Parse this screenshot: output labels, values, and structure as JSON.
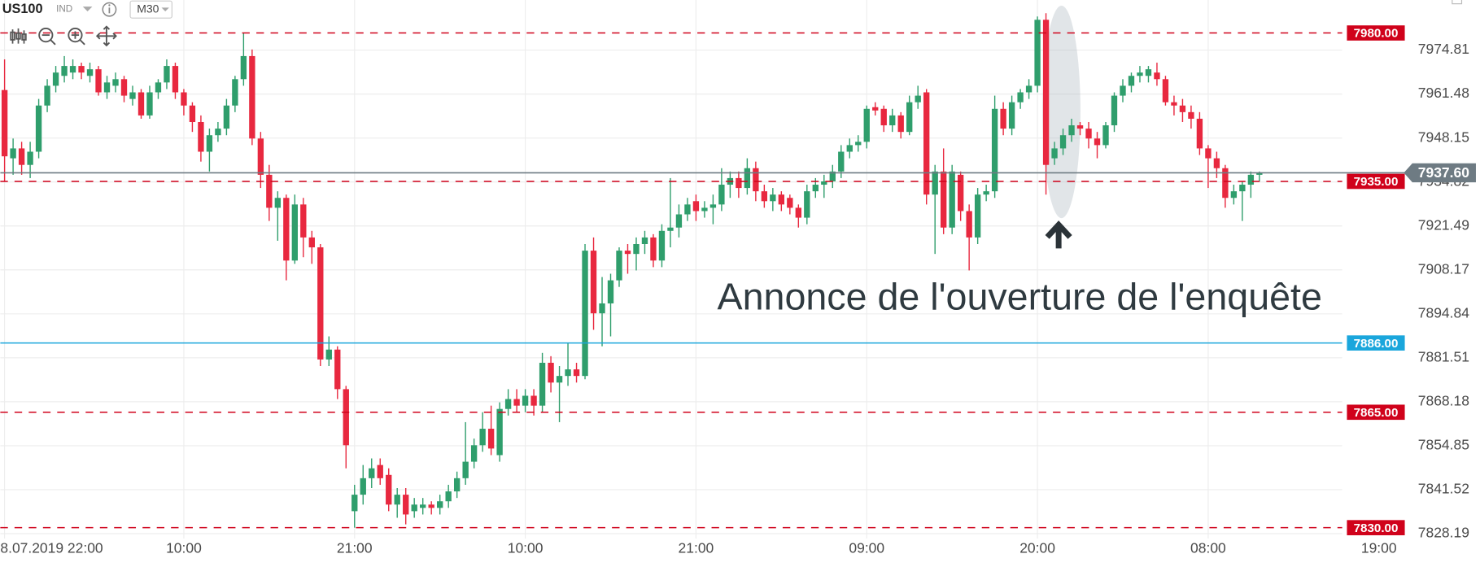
{
  "chart_data": {
    "type": "candlestick",
    "title": "US100",
    "subtitle": "IND",
    "timeframe": "M30",
    "annotation": "Annonce de l'ouverture de l'enquête",
    "up_color": "#2f9e6c",
    "down_color": "#e8283f",
    "grid": true,
    "open": [
      7962.7,
      7942,
      7945,
      7940,
      7944,
      7958,
      7964,
      7967,
      7968,
      7970,
      7967,
      7969,
      7962,
      7964,
      7966,
      7960,
      7962,
      7955,
      7962,
      7965,
      7970,
      7962,
      7958,
      7953,
      7944,
      7949,
      7951,
      7958,
      7966,
      7973,
      7948,
      7937,
      7927,
      7930,
      7911,
      7928,
      7918,
      7915,
      7881,
      7884,
      7872,
      7835,
      7840,
      7845,
      7849,
      7846,
      7837,
      7840,
      7835,
      7836,
      7837,
      7836,
      7838,
      7841,
      7845,
      7850,
      7855,
      7860,
      7852,
      7866,
      7869,
      7867,
      7870,
      7867,
      7880,
      7874,
      7876,
      7878,
      7876,
      7914,
      7895,
      7898,
      7905,
      7914,
      7913,
      7916,
      7918,
      7911,
      7920,
      7921,
      7925,
      7929,
      7926,
      7927,
      7928,
      7934,
      7936,
      7933,
      7939,
      7932,
      7929,
      7931,
      7930,
      7927,
      7924,
      7932,
      7934,
      7935,
      7938,
      7944,
      7946,
      7947,
      7957.5,
      7957,
      7952,
      7955,
      7950,
      7959,
      7962,
      7931,
      7938,
      7921,
      7937,
      7926,
      7918,
      7931,
      7932,
      7957,
      7951,
      7959,
      7962,
      7964,
      7984,
      7942,
      7945,
      7949,
      7952,
      7951,
      7948,
      7946,
      7952,
      7961,
      7964,
      7967,
      7967,
      7968,
      7966,
      7959,
      7958,
      7956,
      7954,
      7945,
      7942,
      7939,
      7930,
      7932,
      7934,
      7937
    ],
    "high": [
      7972,
      7948,
      7947,
      7947,
      7960,
      7966,
      7970,
      7973,
      7972,
      7971,
      7971,
      7970,
      7967,
      7968,
      7967,
      7964,
      7963,
      7964,
      7966,
      7972,
      7971,
      7963,
      7959,
      7955,
      7951,
      7953,
      7960,
      7967,
      7980,
      7975,
      7950,
      7940,
      7932,
      7931,
      7931,
      7930,
      7920,
      7916,
      7888,
      7885,
      7873,
      7843,
      7849,
      7851,
      7851,
      7848,
      7842,
      7842,
      7839,
      7839,
      7838,
      7840,
      7843,
      7847,
      7862,
      7857,
      7865,
      7867,
      7868,
      7872,
      7872,
      7872,
      7872,
      7883,
      7882,
      7879,
      7886,
      7880,
      7916,
      7918,
      7906,
      7907,
      7915,
      7916,
      7918,
      7920,
      7919,
      7922,
      7936,
      7928,
      7930,
      7931,
      7929,
      7931,
      7939,
      7938,
      7938,
      7942,
      7941,
      7934,
      7933,
      7932,
      7931,
      7928,
      7934,
      7936,
      7937,
      7940,
      7946,
      7948,
      7949,
      7958,
      7959,
      7958,
      7957,
      7956,
      7961,
      7964,
      7963,
      7940,
      7945,
      7940,
      7938,
      7928,
      7933,
      7934,
      7961,
      7959,
      7961,
      7963,
      7966,
      7985,
      7986,
      7947,
      7951,
      7954,
      7953,
      7953,
      7950,
      7953,
      7962,
      7966,
      7968,
      7970,
      7970,
      7971,
      7967,
      7961,
      7960,
      7958,
      7956,
      7946,
      7944,
      7940,
      7934,
      7935,
      7938,
      7938
    ],
    "low": [
      7935,
      7937,
      7937,
      7936,
      7942,
      7956,
      7962,
      7965,
      7966,
      7966,
      7965,
      7961,
      7960,
      7962,
      7959,
      7958,
      7954,
      7954,
      7960,
      7963,
      7960,
      7955,
      7950,
      7941,
      7938,
      7947,
      7949,
      7956,
      7964,
      7946,
      7933,
      7923,
      7917,
      7905,
      7910,
      7912,
      7910,
      7879,
      7879,
      7869,
      7848,
      7830,
      7837,
      7842,
      7843,
      7835,
      7833,
      7831,
      7833,
      7834,
      7834,
      7834,
      7836,
      7839,
      7843,
      7848,
      7853,
      7852,
      7850,
      7864,
      7865,
      7865,
      7864,
      7865,
      7871,
      7862,
      7873,
      7874,
      7875,
      7890,
      7885,
      7888,
      7903,
      7907,
      7908,
      7913,
      7909,
      7909,
      7915,
      7918,
      7923,
      7923,
      7924,
      7922,
      7926,
      7930,
      7930,
      7931,
      7929,
      7927,
      7926,
      7926,
      7925,
      7921,
      7922,
      7930,
      7930,
      7933,
      7936,
      7942,
      7944,
      7945,
      7955,
      7950,
      7950,
      7948,
      7949,
      7957,
      7928,
      7913,
      7919,
      7919,
      7923,
      7908,
      7916,
      7929,
      7930,
      7949,
      7949,
      7957,
      7960,
      7962,
      7931,
      7940,
      7943,
      7947,
      7949,
      7945,
      7942,
      7945,
      7950,
      7959,
      7962,
      7965,
      7965,
      7964,
      7958,
      7955,
      7953,
      7951,
      7943,
      7933,
      7936,
      7927,
      7928,
      7923,
      7930,
      7935
    ],
    "close": [
      7942.6,
      7945,
      7940,
      7944,
      7958,
      7964,
      7968,
      7970,
      7970,
      7968,
      7969,
      7962,
      7965,
      7966,
      7961,
      7962,
      7955,
      7962,
      7965,
      7970,
      7962,
      7958,
      7953,
      7944,
      7949,
      7951,
      7958,
      7966,
      7973,
      7948,
      7937,
      7927,
      7930,
      7911,
      7928,
      7918,
      7915,
      7881,
      7884,
      7872,
      7855,
      7840,
      7845,
      7848,
      7845,
      7837,
      7840,
      7834,
      7837,
      7837,
      7836,
      7838,
      7841,
      7845,
      7850,
      7855,
      7860,
      7854,
      7866,
      7869,
      7867,
      7870,
      7867,
      7880,
      7874,
      7876,
      7878,
      7876,
      7914,
      7895,
      7898,
      7905,
      7914,
      7913,
      7916,
      7918,
      7911,
      7920,
      7921,
      7925,
      7928,
      7926,
      7927,
      7928,
      7934,
      7936,
      7933,
      7939,
      7932,
      7929,
      7931,
      7928,
      7927,
      7924,
      7932,
      7934,
      7935,
      7938,
      7944,
      7946,
      7947,
      7957,
      7956.5,
      7952,
      7955,
      7950,
      7959,
      7961,
      7931,
      7938,
      7921,
      7938,
      7926,
      7918,
      7931,
      7932,
      7957,
      7951,
      7959,
      7962,
      7964,
      7984,
      7940,
      7945,
      7949,
      7952,
      7951,
      7948,
      7946,
      7952,
      7961,
      7964,
      7967,
      7968,
      7969,
      7966,
      7959,
      7958,
      7956,
      7954,
      7945,
      7942,
      7939,
      7930,
      7932,
      7934,
      7937,
      7937.6
    ],
    "xlim": [
      -0.5,
      156.7
    ],
    "xticks": [
      {
        "value": 0,
        "label": "8.07.2019 22:00"
      },
      {
        "value": 21,
        "label": "10:00"
      },
      {
        "value": 41,
        "label": "21:00"
      },
      {
        "value": 61,
        "label": "10:00"
      },
      {
        "value": 81,
        "label": "21:00"
      },
      {
        "value": 101,
        "label": "09:00"
      },
      {
        "value": 121,
        "label": "20:00"
      },
      {
        "value": 141,
        "label": "08:00"
      },
      {
        "value": 161,
        "label": "19:00"
      }
    ],
    "ylim": [
      7826.7,
      7990
    ],
    "yticks": [
      7974.81,
      7961.48,
      7948.15,
      7934.82,
      7921.49,
      7908.17,
      7894.84,
      7881.51,
      7868.18,
      7854.85,
      7841.52,
      7828.19
    ],
    "levels": [
      {
        "value": 7980,
        "label": "7980.00",
        "color": "#d0021b",
        "style": "dashed"
      },
      {
        "value": 7935,
        "label": "7935.00",
        "color": "#d0021b",
        "style": "dashed"
      },
      {
        "value": 7886,
        "label": "7886.00",
        "color": "#1aa6dc",
        "style": "solid"
      },
      {
        "value": 7865,
        "label": "7865.00",
        "color": "#d0021b",
        "style": "dashed"
      },
      {
        "value": 7830,
        "label": "7830.00",
        "color": "#d0021b",
        "style": "dashed"
      }
    ],
    "current_price": {
      "value": 7937.6,
      "label": "7937.60",
      "color": "#6e7b83"
    }
  }
}
